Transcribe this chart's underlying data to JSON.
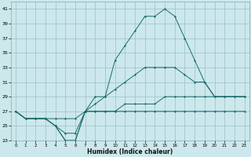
{
  "xlabel": "Humidex (Indice chaleur)",
  "bg_color": "#cce8ec",
  "grid_color": "#9cbfc4",
  "line_color": "#1a6b6b",
  "x": [
    0,
    1,
    2,
    3,
    4,
    5,
    6,
    7,
    8,
    9,
    10,
    11,
    12,
    13,
    14,
    15,
    16,
    17,
    18,
    19,
    20,
    21,
    22,
    23
  ],
  "y_max": [
    27,
    26,
    26,
    26,
    25,
    23,
    23,
    27,
    29,
    29,
    34,
    36,
    38,
    40,
    40,
    41,
    40,
    37,
    34,
    31,
    29,
    29,
    29,
    29
  ],
  "y_mean1": [
    27,
    26,
    26,
    26,
    25,
    24,
    24,
    27,
    28,
    29,
    30,
    31,
    32,
    33,
    33,
    33,
    33,
    32,
    31,
    31,
    29,
    29,
    29,
    29
  ],
  "y_mean2": [
    27,
    26,
    26,
    26,
    26,
    26,
    26,
    27,
    27,
    27,
    27,
    28,
    28,
    28,
    28,
    29,
    29,
    29,
    29,
    29,
    29,
    29,
    29,
    29
  ],
  "y_min": [
    27,
    26,
    26,
    26,
    25,
    23,
    23,
    27,
    27,
    27,
    27,
    27,
    27,
    27,
    27,
    27,
    27,
    27,
    27,
    27,
    27,
    27,
    27,
    27
  ],
  "ylim": [
    23,
    42
  ],
  "yticks": [
    23,
    25,
    27,
    29,
    31,
    33,
    35,
    37,
    39,
    41
  ],
  "xlim": [
    -0.5,
    23.5
  ],
  "xticks": [
    0,
    1,
    2,
    3,
    4,
    5,
    6,
    7,
    8,
    9,
    10,
    11,
    12,
    13,
    14,
    15,
    16,
    17,
    18,
    19,
    20,
    21,
    22,
    23
  ]
}
